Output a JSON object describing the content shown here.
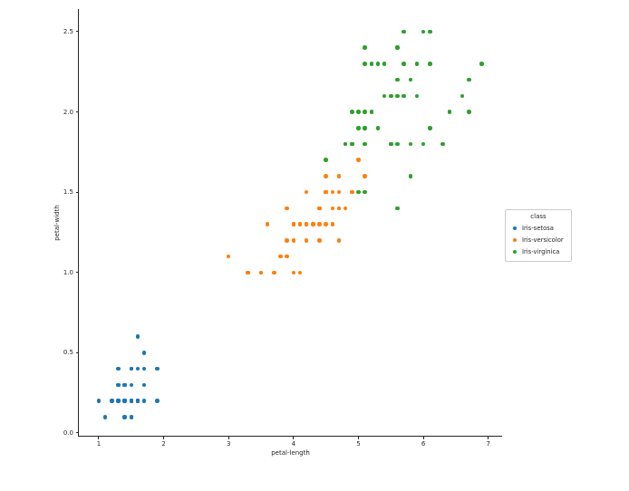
{
  "chart_data": {
    "type": "scatter",
    "title": "",
    "xlabel": "petal-length",
    "ylabel": "petal-width",
    "xlim": [
      0.693,
      7.213
    ],
    "ylim": [
      -0.017,
      2.641
    ],
    "x_ticks": [
      1,
      2,
      3,
      4,
      5,
      6,
      7
    ],
    "y_ticks": [
      0.0,
      0.5,
      1.0,
      1.5,
      2.0,
      2.5
    ],
    "grid": false,
    "spines": [
      "left",
      "bottom"
    ],
    "legend": {
      "title": "class",
      "position": "outside-right",
      "entries": [
        {
          "label": "Iris-setosa",
          "color": "#1f77b4"
        },
        {
          "label": "Iris-versicolor",
          "color": "#ff7f0e"
        },
        {
          "label": "Iris-virginica",
          "color": "#2ca02c"
        }
      ]
    },
    "series": [
      {
        "name": "Iris-setosa",
        "color": "#1f77b4",
        "points": [
          [
            1.4,
            0.2
          ],
          [
            1.4,
            0.2
          ],
          [
            1.3,
            0.2
          ],
          [
            1.5,
            0.2
          ],
          [
            1.4,
            0.2
          ],
          [
            1.7,
            0.4
          ],
          [
            1.4,
            0.3
          ],
          [
            1.5,
            0.2
          ],
          [
            1.4,
            0.2
          ],
          [
            1.5,
            0.1
          ],
          [
            1.5,
            0.2
          ],
          [
            1.6,
            0.2
          ],
          [
            1.4,
            0.1
          ],
          [
            1.1,
            0.1
          ],
          [
            1.2,
            0.2
          ],
          [
            1.5,
            0.4
          ],
          [
            1.3,
            0.4
          ],
          [
            1.4,
            0.3
          ],
          [
            1.7,
            0.3
          ],
          [
            1.5,
            0.3
          ],
          [
            1.7,
            0.2
          ],
          [
            1.5,
            0.4
          ],
          [
            1.0,
            0.2
          ],
          [
            1.7,
            0.5
          ],
          [
            1.9,
            0.2
          ],
          [
            1.6,
            0.2
          ],
          [
            1.6,
            0.4
          ],
          [
            1.5,
            0.2
          ],
          [
            1.4,
            0.2
          ],
          [
            1.6,
            0.2
          ],
          [
            1.6,
            0.2
          ],
          [
            1.5,
            0.4
          ],
          [
            1.5,
            0.1
          ],
          [
            1.4,
            0.2
          ],
          [
            1.5,
            0.2
          ],
          [
            1.2,
            0.2
          ],
          [
            1.3,
            0.2
          ],
          [
            1.4,
            0.1
          ],
          [
            1.3,
            0.2
          ],
          [
            1.5,
            0.2
          ],
          [
            1.3,
            0.3
          ],
          [
            1.3,
            0.3
          ],
          [
            1.3,
            0.2
          ],
          [
            1.6,
            0.6
          ],
          [
            1.9,
            0.4
          ],
          [
            1.4,
            0.3
          ],
          [
            1.6,
            0.2
          ],
          [
            1.4,
            0.2
          ],
          [
            1.5,
            0.2
          ],
          [
            1.4,
            0.2
          ]
        ]
      },
      {
        "name": "Iris-versicolor",
        "color": "#ff7f0e",
        "points": [
          [
            4.7,
            1.4
          ],
          [
            4.5,
            1.5
          ],
          [
            4.9,
            1.5
          ],
          [
            4.0,
            1.3
          ],
          [
            4.6,
            1.5
          ],
          [
            4.5,
            1.3
          ],
          [
            4.7,
            1.6
          ],
          [
            3.3,
            1.0
          ],
          [
            4.6,
            1.3
          ],
          [
            3.9,
            1.4
          ],
          [
            3.5,
            1.0
          ],
          [
            4.2,
            1.5
          ],
          [
            4.0,
            1.0
          ],
          [
            4.7,
            1.4
          ],
          [
            3.6,
            1.3
          ],
          [
            4.4,
            1.4
          ],
          [
            4.5,
            1.5
          ],
          [
            4.1,
            1.0
          ],
          [
            4.5,
            1.5
          ],
          [
            3.9,
            1.1
          ],
          [
            4.8,
            1.8
          ],
          [
            4.0,
            1.3
          ],
          [
            4.9,
            1.5
          ],
          [
            4.7,
            1.2
          ],
          [
            4.3,
            1.3
          ],
          [
            4.4,
            1.4
          ],
          [
            4.8,
            1.4
          ],
          [
            5.0,
            1.7
          ],
          [
            4.5,
            1.5
          ],
          [
            3.5,
            1.0
          ],
          [
            3.8,
            1.1
          ],
          [
            3.7,
            1.0
          ],
          [
            3.9,
            1.2
          ],
          [
            5.1,
            1.6
          ],
          [
            4.5,
            1.5
          ],
          [
            4.5,
            1.6
          ],
          [
            4.7,
            1.5
          ],
          [
            4.4,
            1.3
          ],
          [
            4.1,
            1.3
          ],
          [
            4.0,
            1.3
          ],
          [
            4.4,
            1.2
          ],
          [
            4.6,
            1.4
          ],
          [
            4.0,
            1.2
          ],
          [
            3.3,
            1.0
          ],
          [
            4.2,
            1.3
          ],
          [
            4.2,
            1.2
          ],
          [
            4.2,
            1.3
          ],
          [
            4.3,
            1.3
          ],
          [
            3.0,
            1.1
          ],
          [
            4.1,
            1.3
          ]
        ]
      },
      {
        "name": "Iris-virginica",
        "color": "#2ca02c",
        "points": [
          [
            6.0,
            2.5
          ],
          [
            5.1,
            1.9
          ],
          [
            5.9,
            2.1
          ],
          [
            5.6,
            1.8
          ],
          [
            5.8,
            2.2
          ],
          [
            6.6,
            2.1
          ],
          [
            4.5,
            1.7
          ],
          [
            6.3,
            1.8
          ],
          [
            5.8,
            1.8
          ],
          [
            6.1,
            2.5
          ],
          [
            5.1,
            2.0
          ],
          [
            5.3,
            1.9
          ],
          [
            5.5,
            2.1
          ],
          [
            5.0,
            2.0
          ],
          [
            5.1,
            2.4
          ],
          [
            5.3,
            2.3
          ],
          [
            5.5,
            1.8
          ],
          [
            6.7,
            2.2
          ],
          [
            6.9,
            2.3
          ],
          [
            5.0,
            1.5
          ],
          [
            5.7,
            2.3
          ],
          [
            4.9,
            2.0
          ],
          [
            6.7,
            2.0
          ],
          [
            4.9,
            1.8
          ],
          [
            5.7,
            2.1
          ],
          [
            6.0,
            1.8
          ],
          [
            4.8,
            1.8
          ],
          [
            4.9,
            1.8
          ],
          [
            5.6,
            2.1
          ],
          [
            5.8,
            1.6
          ],
          [
            6.1,
            1.9
          ],
          [
            6.4,
            2.0
          ],
          [
            5.6,
            2.2
          ],
          [
            5.1,
            1.5
          ],
          [
            5.6,
            1.4
          ],
          [
            6.1,
            2.3
          ],
          [
            5.6,
            2.4
          ],
          [
            5.5,
            1.8
          ],
          [
            4.8,
            1.8
          ],
          [
            5.4,
            2.1
          ],
          [
            5.6,
            2.4
          ],
          [
            5.1,
            2.3
          ],
          [
            5.9,
            2.3
          ],
          [
            5.7,
            2.5
          ],
          [
            5.2,
            2.3
          ],
          [
            5.0,
            1.9
          ],
          [
            5.2,
            2.0
          ],
          [
            5.4,
            2.3
          ],
          [
            5.1,
            1.8
          ],
          [
            5.1,
            1.9
          ]
        ]
      }
    ]
  }
}
